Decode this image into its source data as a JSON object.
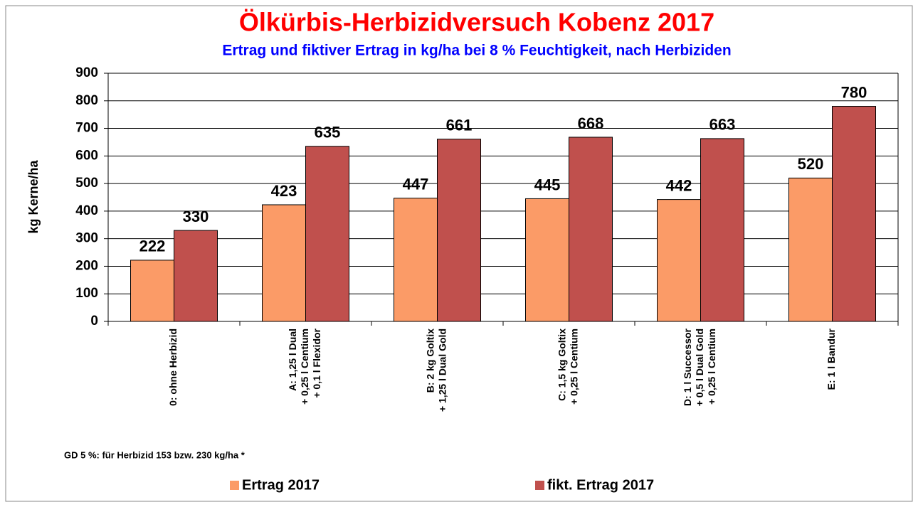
{
  "chart_data": {
    "type": "bar",
    "title": "Ölkürbis-Herbizidversuch Kobenz 2017",
    "subtitle": "Ertrag und fiktiver Ertrag in kg/ha bei 8 % Feuchtigkeit, nach Herbiziden",
    "y_label": "kg Kerne/ha",
    "note": "GD 5 %: für Herbizid 153 bzw. 230 kg/ha *",
    "categories": [
      [
        "0: ohne Herbizid"
      ],
      [
        "A: 1,25 l Dual",
        "+ 0,25 l Centium",
        "+ 0,1 l Flexidor"
      ],
      [
        "B: 2 kg Goltix",
        "+ 1,25 l Dual Gold"
      ],
      [
        "C: 1,5 kg Goltix",
        "+ 0,25 l Centium"
      ],
      [
        "D: 1 l Successor",
        "+ 0,5 l Dual Gold",
        "+ 0,25 l Centium"
      ],
      [
        "E: 1 l Bandur"
      ]
    ],
    "series": [
      {
        "name": "Ertrag 2017",
        "color": "#fb9b67",
        "values": [
          222,
          423,
          447,
          445,
          442,
          520
        ]
      },
      {
        "name": "fikt. Ertrag 2017",
        "color": "#c0504d",
        "values": [
          330,
          635,
          661,
          668,
          663,
          780
        ]
      }
    ],
    "ylim": [
      0,
      900
    ],
    "yticks": [
      0,
      100,
      200,
      300,
      400,
      500,
      600,
      700,
      800,
      900
    ],
    "grid": true,
    "legend": "bottom"
  }
}
